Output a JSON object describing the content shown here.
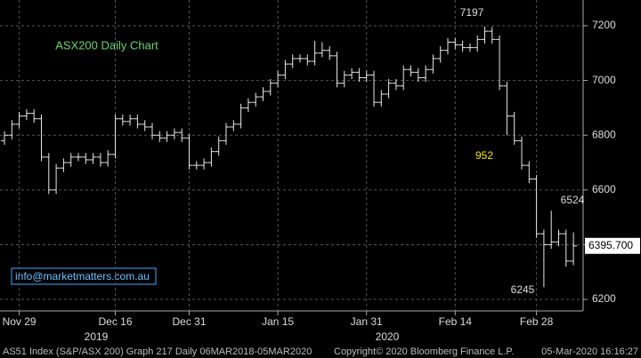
{
  "chart_data": {
    "type": "ohlc",
    "title": "ASX200 Daily Chart",
    "categories": [
      null,
      null,
      "Nov 29",
      null,
      null,
      null,
      null,
      null,
      null,
      null,
      null,
      null,
      null,
      null,
      null,
      "Dec 16",
      null,
      null,
      null,
      null,
      null,
      null,
      null,
      null,
      null,
      "Dec 31",
      null,
      null,
      null,
      null,
      null,
      null,
      null,
      null,
      null,
      null,
      null,
      "Jan 15",
      null,
      null,
      null,
      null,
      null,
      null,
      null,
      null,
      null,
      null,
      null,
      "Jan 31",
      null,
      null,
      null,
      null,
      null,
      null,
      null,
      null,
      null,
      null,
      null,
      "Feb 14",
      null,
      null,
      null,
      null,
      null,
      null,
      null,
      null,
      null,
      null,
      "Feb 28",
      null,
      null,
      null,
      null,
      null
    ],
    "open": [
      6780,
      6800,
      6840,
      6870,
      6880,
      6860,
      6720,
      6600,
      6680,
      6700,
      6720,
      6720,
      6710,
      6720,
      6700,
      6730,
      6860,
      6850,
      6860,
      6840,
      6830,
      6800,
      6790,
      6800,
      6810,
      6790,
      6690,
      6690,
      6700,
      6740,
      6780,
      6830,
      6840,
      6900,
      6920,
      6940,
      6960,
      6990,
      7020,
      7060,
      7080,
      7080,
      7070,
      7100,
      7110,
      7090,
      6990,
      7020,
      7030,
      7010,
      7020,
      6920,
      6950,
      6990,
      6980,
      7040,
      7030,
      7010,
      7040,
      7080,
      7110,
      7140,
      7130,
      7120,
      7120,
      7150,
      7180,
      7150,
      6980,
      6870,
      6780,
      6690,
      6640,
      6440,
      6400,
      6410,
      6440,
      6340
    ],
    "high": [
      6815,
      6855,
      6885,
      6895,
      6895,
      6875,
      6735,
      6695,
      6715,
      6735,
      6735,
      6735,
      6735,
      6735,
      6745,
      6875,
      6875,
      6875,
      6875,
      6855,
      6845,
      6815,
      6815,
      6825,
      6825,
      6805,
      6705,
      6715,
      6755,
      6795,
      6845,
      6855,
      6915,
      6935,
      6955,
      6975,
      7005,
      7035,
      7075,
      7095,
      7095,
      7095,
      7145,
      7140,
      7125,
      7105,
      7035,
      7045,
      7045,
      7035,
      7035,
      6965,
      7005,
      7005,
      7055,
      7055,
      7045,
      7055,
      7095,
      7125,
      7155,
      7155,
      7145,
      7135,
      7165,
      7197,
      7195,
      7165,
      6995,
      6885,
      6795,
      6705,
      6655,
      6455,
      6524,
      6455,
      6455,
      6445
    ],
    "low": [
      6765,
      6785,
      6825,
      6855,
      6845,
      6705,
      6585,
      6585,
      6665,
      6685,
      6705,
      6695,
      6695,
      6685,
      6685,
      6715,
      6835,
      6835,
      6825,
      6815,
      6785,
      6775,
      6775,
      6785,
      6775,
      6675,
      6675,
      6675,
      6685,
      6725,
      6765,
      6815,
      6825,
      6885,
      6905,
      6925,
      6945,
      6975,
      7005,
      7045,
      7065,
      7055,
      7055,
      7085,
      7075,
      6975,
      6975,
      7005,
      6995,
      6995,
      6905,
      6905,
      6935,
      6965,
      6965,
      7015,
      6995,
      6995,
      7025,
      7065,
      7095,
      7115,
      7105,
      7105,
      7105,
      7135,
      7135,
      6965,
      6800,
      6765,
      6675,
      6625,
      6425,
      6245,
      6385,
      6395,
      6320,
      6325
    ],
    "close": [
      6800,
      6840,
      6870,
      6880,
      6860,
      6720,
      6600,
      6680,
      6700,
      6720,
      6720,
      6710,
      6720,
      6700,
      6730,
      6860,
      6850,
      6860,
      6840,
      6830,
      6800,
      6790,
      6800,
      6810,
      6790,
      6690,
      6690,
      6700,
      6740,
      6780,
      6830,
      6840,
      6900,
      6920,
      6940,
      6960,
      6990,
      7020,
      7060,
      7080,
      7080,
      7070,
      7100,
      7110,
      7090,
      6990,
      7020,
      7030,
      7010,
      7020,
      6920,
      6950,
      6990,
      6980,
      7040,
      7030,
      7010,
      7040,
      7080,
      7110,
      7140,
      7130,
      7120,
      7120,
      7150,
      7180,
      7150,
      6980,
      6870,
      6780,
      6690,
      6640,
      6440,
      6400,
      6410,
      6440,
      6340,
      6395.7
    ],
    "color": "#e8e8e8",
    "ylim": [
      6158,
      7294
    ],
    "yticks": [
      6200,
      6400,
      6600,
      6800,
      7000,
      7200
    ],
    "grid": true,
    "last_price": {
      "value": 6395.7,
      "label": "6395.700"
    },
    "year_labels": [
      "2019",
      "2020"
    ],
    "annotations": [
      "7197",
      "952",
      "6524",
      "6245"
    ]
  },
  "watermark": "info@marketmatters.com.au",
  "footer": {
    "left": "AS51 Index (S&P/ASX 200) Graph 217  Daily 06MAR2018-05MAR2020",
    "center": "Copyright© 2020 Bloomberg Finance L.P.",
    "right": "05-Mar-2020 16:16:27"
  }
}
